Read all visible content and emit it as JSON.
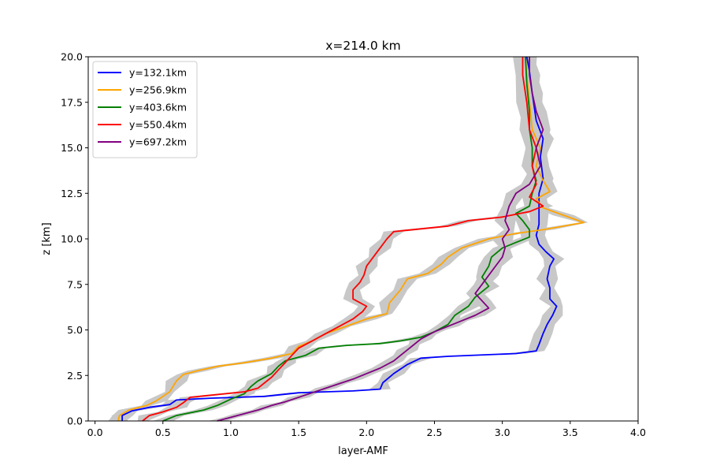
{
  "chart_data": {
    "type": "line",
    "title": "x=214.0 km",
    "xlabel": "layer-AMF",
    "ylabel": "z [km]",
    "xlim": [
      -0.05,
      4.0
    ],
    "ylim": [
      0,
      20
    ],
    "xticks": [
      "0.0",
      "0.5",
      "1.0",
      "1.5",
      "2.0",
      "2.5",
      "3.0",
      "3.5",
      "4.0"
    ],
    "yticks": [
      "0.0",
      "2.5",
      "5.0",
      "7.5",
      "10.0",
      "12.5",
      "15.0",
      "17.5",
      "20.0"
    ],
    "grid": false,
    "legend_position": "top-left",
    "uncertainty_band_color": "#c8c8c8",
    "series": [
      {
        "name": "y=132.1km",
        "color": "#0000ff",
        "points": [
          [
            0.2,
            0.0
          ],
          [
            0.2,
            0.3
          ],
          [
            0.27,
            0.55
          ],
          [
            0.4,
            0.75
          ],
          [
            0.55,
            0.9
          ],
          [
            0.6,
            1.15
          ],
          [
            0.85,
            1.25
          ],
          [
            1.25,
            1.35
          ],
          [
            1.5,
            1.55
          ],
          [
            1.9,
            1.65
          ],
          [
            2.1,
            1.75
          ],
          [
            2.12,
            2.1
          ],
          [
            2.2,
            2.6
          ],
          [
            2.3,
            3.1
          ],
          [
            2.4,
            3.45
          ],
          [
            2.6,
            3.55
          ],
          [
            3.1,
            3.7
          ],
          [
            3.25,
            3.85
          ],
          [
            3.27,
            4.2
          ],
          [
            3.3,
            4.8
          ],
          [
            3.33,
            5.3
          ],
          [
            3.37,
            5.8
          ],
          [
            3.4,
            6.3
          ],
          [
            3.35,
            6.7
          ],
          [
            3.35,
            7.3
          ],
          [
            3.33,
            7.8
          ],
          [
            3.35,
            8.5
          ],
          [
            3.38,
            8.9
          ],
          [
            3.32,
            9.3
          ],
          [
            3.27,
            9.7
          ],
          [
            3.25,
            10.2
          ],
          [
            3.27,
            10.8
          ],
          [
            3.27,
            11.5
          ],
          [
            3.27,
            12.5
          ],
          [
            3.3,
            13.3
          ],
          [
            3.28,
            14.5
          ],
          [
            3.3,
            15.5
          ],
          [
            3.25,
            16.5
          ],
          [
            3.22,
            18
          ],
          [
            3.2,
            19.2
          ],
          [
            3.18,
            20.0
          ]
        ]
      },
      {
        "name": "y=256.9km",
        "color": "#ffa500",
        "points": [
          [
            0.17,
            0.0
          ],
          [
            0.18,
            0.3
          ],
          [
            0.25,
            0.6
          ],
          [
            0.38,
            0.85
          ],
          [
            0.45,
            1.1
          ],
          [
            0.55,
            1.6
          ],
          [
            0.6,
            2.2
          ],
          [
            0.65,
            2.55
          ],
          [
            0.75,
            2.75
          ],
          [
            0.9,
            3.0
          ],
          [
            1.1,
            3.2
          ],
          [
            1.3,
            3.45
          ],
          [
            1.45,
            3.7
          ],
          [
            1.5,
            4.1
          ],
          [
            1.6,
            4.4
          ],
          [
            1.7,
            4.8
          ],
          [
            1.85,
            5.2
          ],
          [
            2.0,
            5.6
          ],
          [
            2.15,
            5.9
          ],
          [
            2.17,
            6.5
          ],
          [
            2.25,
            7.2
          ],
          [
            2.3,
            7.8
          ],
          [
            2.45,
            8.1
          ],
          [
            2.55,
            8.6
          ],
          [
            2.6,
            9.0
          ],
          [
            2.7,
            9.5
          ],
          [
            2.9,
            10.0
          ],
          [
            3.1,
            10.3
          ],
          [
            3.3,
            10.5
          ],
          [
            3.6,
            10.9
          ],
          [
            3.45,
            11.3
          ],
          [
            3.3,
            11.7
          ],
          [
            3.25,
            12.2
          ],
          [
            3.35,
            12.6
          ],
          [
            3.3,
            13.2
          ],
          [
            3.25,
            14.0
          ],
          [
            3.28,
            15.0
          ],
          [
            3.22,
            16.0
          ],
          [
            3.2,
            17.5
          ],
          [
            3.18,
            19
          ],
          [
            3.17,
            20.0
          ]
        ]
      },
      {
        "name": "y=403.6km",
        "color": "#008000",
        "points": [
          [
            0.5,
            0.0
          ],
          [
            0.6,
            0.3
          ],
          [
            0.8,
            0.6
          ],
          [
            0.9,
            0.85
          ],
          [
            1.0,
            1.2
          ],
          [
            1.1,
            1.5
          ],
          [
            1.15,
            1.9
          ],
          [
            1.2,
            2.2
          ],
          [
            1.3,
            2.6
          ],
          [
            1.35,
            3.0
          ],
          [
            1.4,
            3.3
          ],
          [
            1.55,
            3.6
          ],
          [
            1.65,
            4.0
          ],
          [
            1.85,
            4.15
          ],
          [
            2.1,
            4.25
          ],
          [
            2.25,
            4.4
          ],
          [
            2.4,
            4.6
          ],
          [
            2.5,
            4.9
          ],
          [
            2.6,
            5.3
          ],
          [
            2.65,
            5.8
          ],
          [
            2.75,
            6.3
          ],
          [
            2.8,
            6.8
          ],
          [
            2.9,
            7.4
          ],
          [
            2.85,
            7.9
          ],
          [
            2.9,
            8.5
          ],
          [
            2.92,
            9.0
          ],
          [
            3.0,
            9.5
          ],
          [
            3.1,
            9.8
          ],
          [
            3.2,
            10.1
          ],
          [
            3.2,
            10.5
          ],
          [
            3.15,
            11.0
          ],
          [
            3.1,
            11.4
          ],
          [
            3.2,
            11.8
          ],
          [
            3.22,
            12.5
          ],
          [
            3.25,
            13.2
          ],
          [
            3.22,
            14.0
          ],
          [
            3.22,
            15.0
          ],
          [
            3.2,
            16.0
          ],
          [
            3.2,
            17.0
          ],
          [
            3.18,
            18.5
          ],
          [
            3.17,
            20.0
          ]
        ]
      },
      {
        "name": "y=550.4km",
        "color": "#ff0000",
        "points": [
          [
            0.35,
            0.0
          ],
          [
            0.4,
            0.3
          ],
          [
            0.5,
            0.5
          ],
          [
            0.6,
            0.75
          ],
          [
            0.65,
            1.0
          ],
          [
            0.7,
            1.3
          ],
          [
            0.9,
            1.45
          ],
          [
            1.1,
            1.6
          ],
          [
            1.2,
            1.8
          ],
          [
            1.25,
            2.1
          ],
          [
            1.3,
            2.4
          ],
          [
            1.35,
            2.8
          ],
          [
            1.4,
            3.2
          ],
          [
            1.45,
            3.6
          ],
          [
            1.5,
            4.0
          ],
          [
            1.6,
            4.4
          ],
          [
            1.7,
            4.8
          ],
          [
            1.8,
            5.2
          ],
          [
            1.9,
            5.6
          ],
          [
            1.97,
            6.0
          ],
          [
            2.0,
            6.3
          ],
          [
            1.9,
            6.7
          ],
          [
            1.9,
            7.2
          ],
          [
            1.95,
            7.6
          ],
          [
            1.98,
            8.0
          ],
          [
            2.0,
            8.5
          ],
          [
            2.05,
            9.0
          ],
          [
            2.1,
            9.5
          ],
          [
            2.15,
            10.0
          ],
          [
            2.2,
            10.4
          ],
          [
            2.6,
            10.7
          ],
          [
            2.75,
            11.0
          ],
          [
            3.0,
            11.2
          ],
          [
            3.2,
            11.5
          ],
          [
            3.3,
            11.8
          ],
          [
            3.2,
            12.3
          ],
          [
            3.25,
            13.0
          ],
          [
            3.22,
            14.0
          ],
          [
            3.25,
            15.0
          ],
          [
            3.2,
            16.0
          ],
          [
            3.18,
            17.5
          ],
          [
            3.15,
            19
          ],
          [
            3.15,
            20.0
          ]
        ]
      },
      {
        "name": "y=697.2km",
        "color": "#800080",
        "points": [
          [
            0.9,
            0.0
          ],
          [
            1.0,
            0.2
          ],
          [
            1.1,
            0.4
          ],
          [
            1.2,
            0.6
          ],
          [
            1.3,
            0.85
          ],
          [
            1.4,
            1.05
          ],
          [
            1.5,
            1.3
          ],
          [
            1.6,
            1.55
          ],
          [
            1.7,
            1.8
          ],
          [
            1.8,
            2.05
          ],
          [
            1.9,
            2.3
          ],
          [
            2.0,
            2.6
          ],
          [
            2.1,
            2.9
          ],
          [
            2.2,
            3.3
          ],
          [
            2.25,
            3.6
          ],
          [
            2.3,
            3.9
          ],
          [
            2.35,
            4.2
          ],
          [
            2.4,
            4.5
          ],
          [
            2.5,
            4.9
          ],
          [
            2.6,
            5.2
          ],
          [
            2.7,
            5.5
          ],
          [
            2.8,
            5.8
          ],
          [
            2.9,
            6.2
          ],
          [
            2.85,
            6.6
          ],
          [
            2.8,
            7.0
          ],
          [
            2.85,
            7.5
          ],
          [
            2.9,
            8.0
          ],
          [
            2.95,
            8.5
          ],
          [
            3.0,
            9.0
          ],
          [
            3.02,
            9.5
          ],
          [
            3.0,
            10.0
          ],
          [
            3.05,
            10.5
          ],
          [
            3.02,
            11.0
          ],
          [
            3.05,
            11.8
          ],
          [
            3.1,
            12.5
          ],
          [
            3.2,
            13.0
          ],
          [
            3.28,
            14.0
          ],
          [
            3.25,
            15.0
          ],
          [
            3.3,
            16.0
          ],
          [
            3.25,
            17.0
          ],
          [
            3.22,
            18.0
          ],
          [
            3.2,
            19.0
          ],
          [
            3.2,
            20.0
          ]
        ]
      }
    ]
  }
}
